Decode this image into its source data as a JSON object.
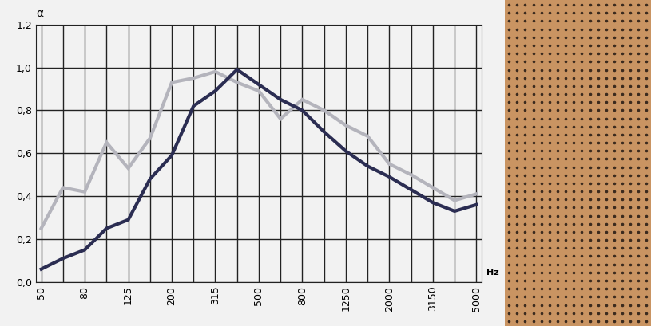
{
  "chart_data": {
    "type": "line",
    "x_label": "Hz",
    "y_label": "α",
    "categories": [
      "50",
      null,
      "80",
      null,
      "125",
      null,
      "200",
      null,
      "315",
      null,
      "500",
      null,
      "800",
      null,
      "1250",
      null,
      "2000",
      null,
      "3150",
      null,
      "5000"
    ],
    "series": [
      {
        "color": "#b4b4bc",
        "values": [
          0.25,
          0.44,
          0.42,
          0.65,
          0.53,
          0.67,
          0.93,
          0.95,
          0.98,
          0.93,
          0.89,
          0.76,
          0.85,
          0.8,
          0.73,
          0.68,
          0.55,
          0.5,
          0.44,
          0.38,
          0.41
        ]
      },
      {
        "color": "#2b2d52",
        "values": [
          0.06,
          0.11,
          0.15,
          0.25,
          0.29,
          0.48,
          0.59,
          0.82,
          0.89,
          0.99,
          0.92,
          0.85,
          0.8,
          0.7,
          0.61,
          0.54,
          0.49,
          0.43,
          0.37,
          0.33,
          0.36
        ]
      }
    ],
    "ylim": [
      0,
      1.2
    ],
    "yticks": [
      {
        "value": 0,
        "label": "0,0"
      },
      {
        "value": 0.2,
        "label": "0,2"
      },
      {
        "value": 0.4,
        "label": "0,4"
      },
      {
        "value": 0.6,
        "label": "0,6"
      },
      {
        "value": 0.8,
        "label": "0,8"
      },
      {
        "value": 1.0,
        "label": "1,0"
      },
      {
        "value": 1.2,
        "label": "1,2"
      }
    ],
    "grid": true
  }
}
